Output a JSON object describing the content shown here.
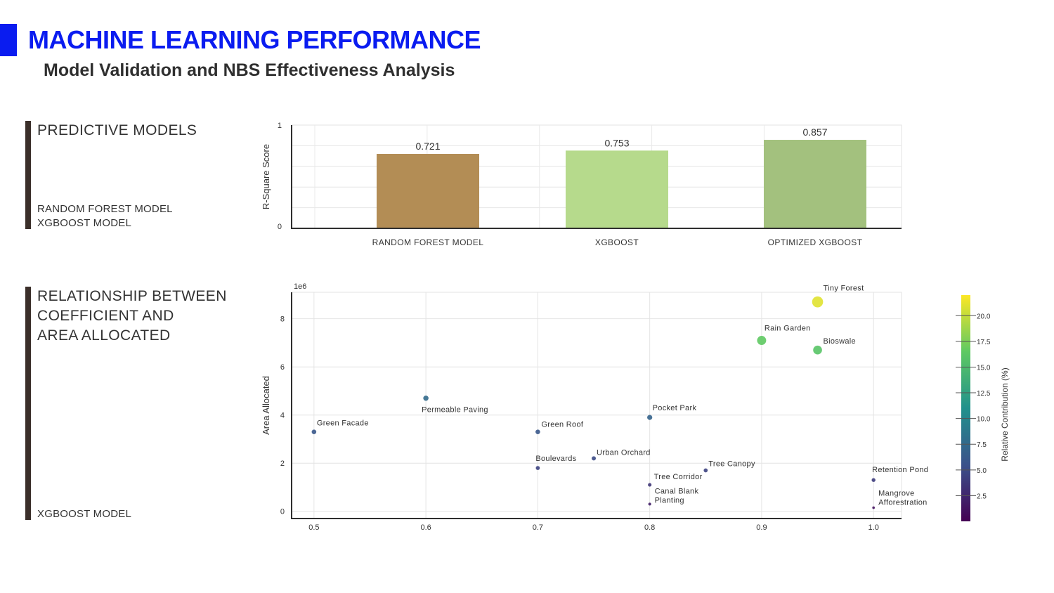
{
  "header": {
    "title": "MACHINE LEARNING PERFORMANCE",
    "subtitle": "Model Validation and NBS Effectiveness Analysis"
  },
  "sections": [
    {
      "heading": "PREDICTIVE MODELS",
      "notes": [
        "RANDOM FOREST MODEL",
        "XGBOOST MODEL"
      ]
    },
    {
      "heading": "RELATIONSHIP BETWEEN\nCOEFFICIENT AND\nAREA ALLOCATED",
      "notes": [
        "XGBOOST MODEL"
      ]
    }
  ],
  "colors": {
    "accent": "#0a1cf0",
    "section_rule": "#3b2f2a",
    "bar_random_forest": "#b38d55",
    "bar_xgboost": "#b6da8c",
    "bar_optimized_xgboost": "#a3c17e"
  },
  "chart_data": [
    {
      "type": "bar",
      "categories": [
        "RANDOM FOREST MODEL",
        "XGBOOST",
        "OPTIMIZED XGBOOST"
      ],
      "values": [
        0.721,
        0.753,
        0.857
      ],
      "data_labels": [
        "0.721",
        "0.753",
        "0.857"
      ],
      "ylabel": "R-Square Score",
      "ylim": [
        0,
        1
      ],
      "yticks": [
        "0",
        "1"
      ],
      "grid": true
    },
    {
      "type": "scatter",
      "xlabel": "",
      "ylabel": "Area Allocated",
      "y_scale_label": "1e6",
      "xlim": [
        0.48,
        1.025
      ],
      "ylim": [
        -0.3,
        9.1
      ],
      "xticks": [
        "0.5",
        "0.6",
        "0.7",
        "0.8",
        "0.9",
        "1.0"
      ],
      "yticks": [
        "0",
        "2",
        "4",
        "6",
        "8"
      ],
      "grid": true,
      "colorbar": {
        "label": "Relative Contribution (%)",
        "range": [
          0,
          22
        ],
        "ticks": [
          "2.5",
          "5.0",
          "7.5",
          "10.0",
          "12.5",
          "15.0",
          "17.5",
          "20.0"
        ],
        "colormap": "viridis"
      },
      "points": [
        {
          "label": "Tiny Forest",
          "x": 0.95,
          "y": 8.7,
          "contribution": 21.0
        },
        {
          "label": "Rain Garden",
          "x": 0.9,
          "y": 7.1,
          "contribution": 16.5
        },
        {
          "label": "Bioswale",
          "x": 0.95,
          "y": 6.7,
          "contribution": 16.0
        },
        {
          "label": "Permeable Paving",
          "x": 0.6,
          "y": 4.7,
          "contribution": 7.5
        },
        {
          "label": "Pocket Park",
          "x": 0.8,
          "y": 3.9,
          "contribution": 7.0
        },
        {
          "label": "Green Facade",
          "x": 0.5,
          "y": 3.3,
          "contribution": 6.0
        },
        {
          "label": "Green Roof",
          "x": 0.7,
          "y": 3.3,
          "contribution": 6.0
        },
        {
          "label": "Urban Orchard",
          "x": 0.75,
          "y": 2.2,
          "contribution": 5.0
        },
        {
          "label": "Boulevards",
          "x": 0.7,
          "y": 1.8,
          "contribution": 4.5
        },
        {
          "label": "Tree Canopy",
          "x": 0.85,
          "y": 1.7,
          "contribution": 4.5
        },
        {
          "label": "Retention Pond",
          "x": 1.0,
          "y": 1.3,
          "contribution": 4.0
        },
        {
          "label": "Tree Corridor",
          "x": 0.8,
          "y": 1.1,
          "contribution": 3.5
        },
        {
          "label": "Canal Blank\nPlanting",
          "x": 0.8,
          "y": 0.3,
          "contribution": 2.0
        },
        {
          "label": "Mangrove\nAfforestration",
          "x": 1.0,
          "y": 0.15,
          "contribution": 1.0
        }
      ]
    }
  ]
}
